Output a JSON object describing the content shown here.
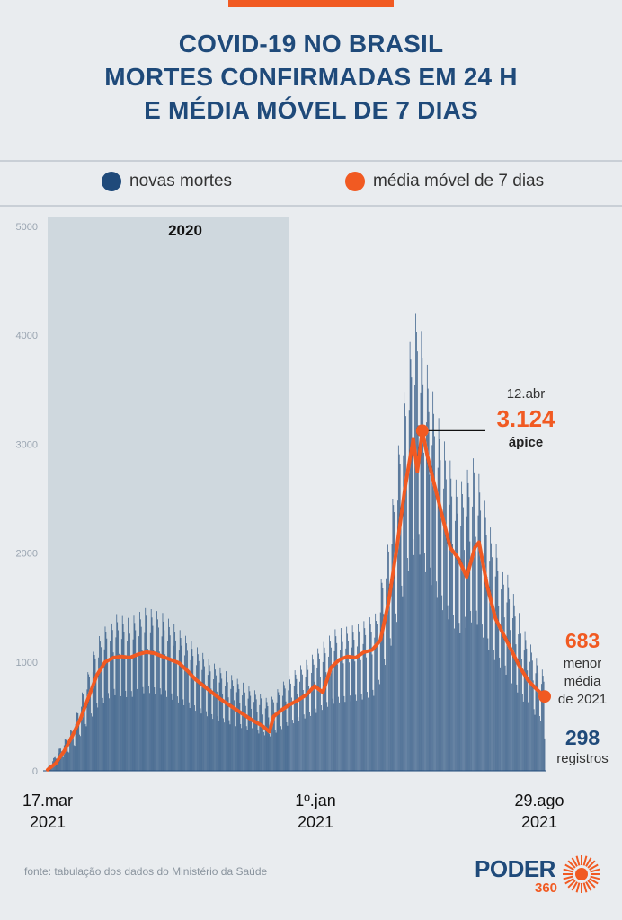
{
  "title_lines": [
    "COVID-19 NO BRASIL",
    "MORTES CONFIRMADAS EM 24 H",
    "E MÉDIA MÓVEL DE 7 DIAS"
  ],
  "legend": [
    {
      "label": "novas mortes",
      "color": "#1f4a7a"
    },
    {
      "label": "média móvel de 7 dias",
      "color": "#f15a22"
    }
  ],
  "chart_data": {
    "type": "bar",
    "period_label": "2020",
    "ylim": [
      0,
      5000
    ],
    "y_ticks": [
      "0",
      "1000",
      "2000",
      "3000",
      "4000",
      "5000"
    ],
    "x_labels": [
      {
        "line1": "17.mar",
        "line2": "2021"
      },
      {
        "line1": "1º.jan",
        "line2": "2021"
      },
      {
        "line1": "29.ago",
        "line2": "2021"
      }
    ],
    "series": [
      {
        "name": "novas mortes",
        "type": "bar",
        "color": "#1f4a7a"
      },
      {
        "name": "média móvel de 7 dias",
        "type": "line",
        "color": "#f15a22"
      }
    ],
    "moving_average_points": [
      [
        0,
        10
      ],
      [
        10,
        70
      ],
      [
        20,
        180
      ],
      [
        30,
        320
      ],
      [
        40,
        480
      ],
      [
        50,
        680
      ],
      [
        60,
        880
      ],
      [
        70,
        1000
      ],
      [
        80,
        1040
      ],
      [
        90,
        1050
      ],
      [
        100,
        1040
      ],
      [
        110,
        1070
      ],
      [
        120,
        1090
      ],
      [
        130,
        1080
      ],
      [
        140,
        1050
      ],
      [
        150,
        1020
      ],
      [
        160,
        990
      ],
      [
        170,
        920
      ],
      [
        180,
        840
      ],
      [
        190,
        780
      ],
      [
        200,
        720
      ],
      [
        210,
        660
      ],
      [
        220,
        610
      ],
      [
        230,
        560
      ],
      [
        240,
        510
      ],
      [
        250,
        460
      ],
      [
        260,
        420
      ],
      [
        270,
        360
      ],
      [
        275,
        500
      ],
      [
        285,
        560
      ],
      [
        295,
        610
      ],
      [
        305,
        650
      ],
      [
        315,
        700
      ],
      [
        325,
        780
      ],
      [
        335,
        720
      ],
      [
        345,
        950
      ],
      [
        355,
        1020
      ],
      [
        365,
        1050
      ],
      [
        375,
        1040
      ],
      [
        385,
        1090
      ],
      [
        395,
        1110
      ],
      [
        405,
        1200
      ],
      [
        415,
        1550
      ],
      [
        425,
        2050
      ],
      [
        435,
        2600
      ],
      [
        445,
        3050
      ],
      [
        450,
        2750
      ],
      [
        456,
        3124
      ],
      [
        462,
        2900
      ],
      [
        470,
        2650
      ],
      [
        480,
        2350
      ],
      [
        490,
        2050
      ],
      [
        500,
        1950
      ],
      [
        510,
        1780
      ],
      [
        520,
        2050
      ],
      [
        525,
        2100
      ],
      [
        535,
        1700
      ],
      [
        545,
        1400
      ],
      [
        555,
        1250
      ],
      [
        565,
        1100
      ],
      [
        575,
        950
      ],
      [
        585,
        830
      ],
      [
        595,
        750
      ],
      [
        605,
        683
      ]
    ],
    "bar_envelope": [
      [
        0,
        30
      ],
      [
        30,
        400
      ],
      [
        60,
        1200
      ],
      [
        80,
        1450
      ],
      [
        100,
        1400
      ],
      [
        120,
        1500
      ],
      [
        140,
        1450
      ],
      [
        160,
        1300
      ],
      [
        180,
        1150
      ],
      [
        200,
        1000
      ],
      [
        220,
        900
      ],
      [
        240,
        800
      ],
      [
        260,
        700
      ],
      [
        270,
        650
      ],
      [
        290,
        850
      ],
      [
        320,
        1050
      ],
      [
        350,
        1300
      ],
      [
        380,
        1350
      ],
      [
        400,
        1450
      ],
      [
        420,
        2500
      ],
      [
        440,
        3900
      ],
      [
        450,
        4280
      ],
      [
        460,
        3800
      ],
      [
        480,
        3100
      ],
      [
        500,
        2600
      ],
      [
        520,
        2900
      ],
      [
        540,
        2200
      ],
      [
        560,
        1800
      ],
      [
        580,
        1300
      ],
      [
        600,
        950
      ],
      [
        605,
        900
      ]
    ],
    "annotations": {
      "peak": {
        "date": "12.abr",
        "value_label": "3.124",
        "caption": "ápice",
        "value": 3124
      },
      "lowest": {
        "value_label": "683",
        "caption_lines": [
          "menor",
          "média",
          "de 2021"
        ],
        "value": 683
      },
      "last": {
        "value_label": "298",
        "caption": "registros",
        "value": 298
      }
    }
  },
  "source": "fonte: tabulação dos dados do Ministério da Saúde",
  "logo": {
    "text": "PODER",
    "sub": "360"
  }
}
